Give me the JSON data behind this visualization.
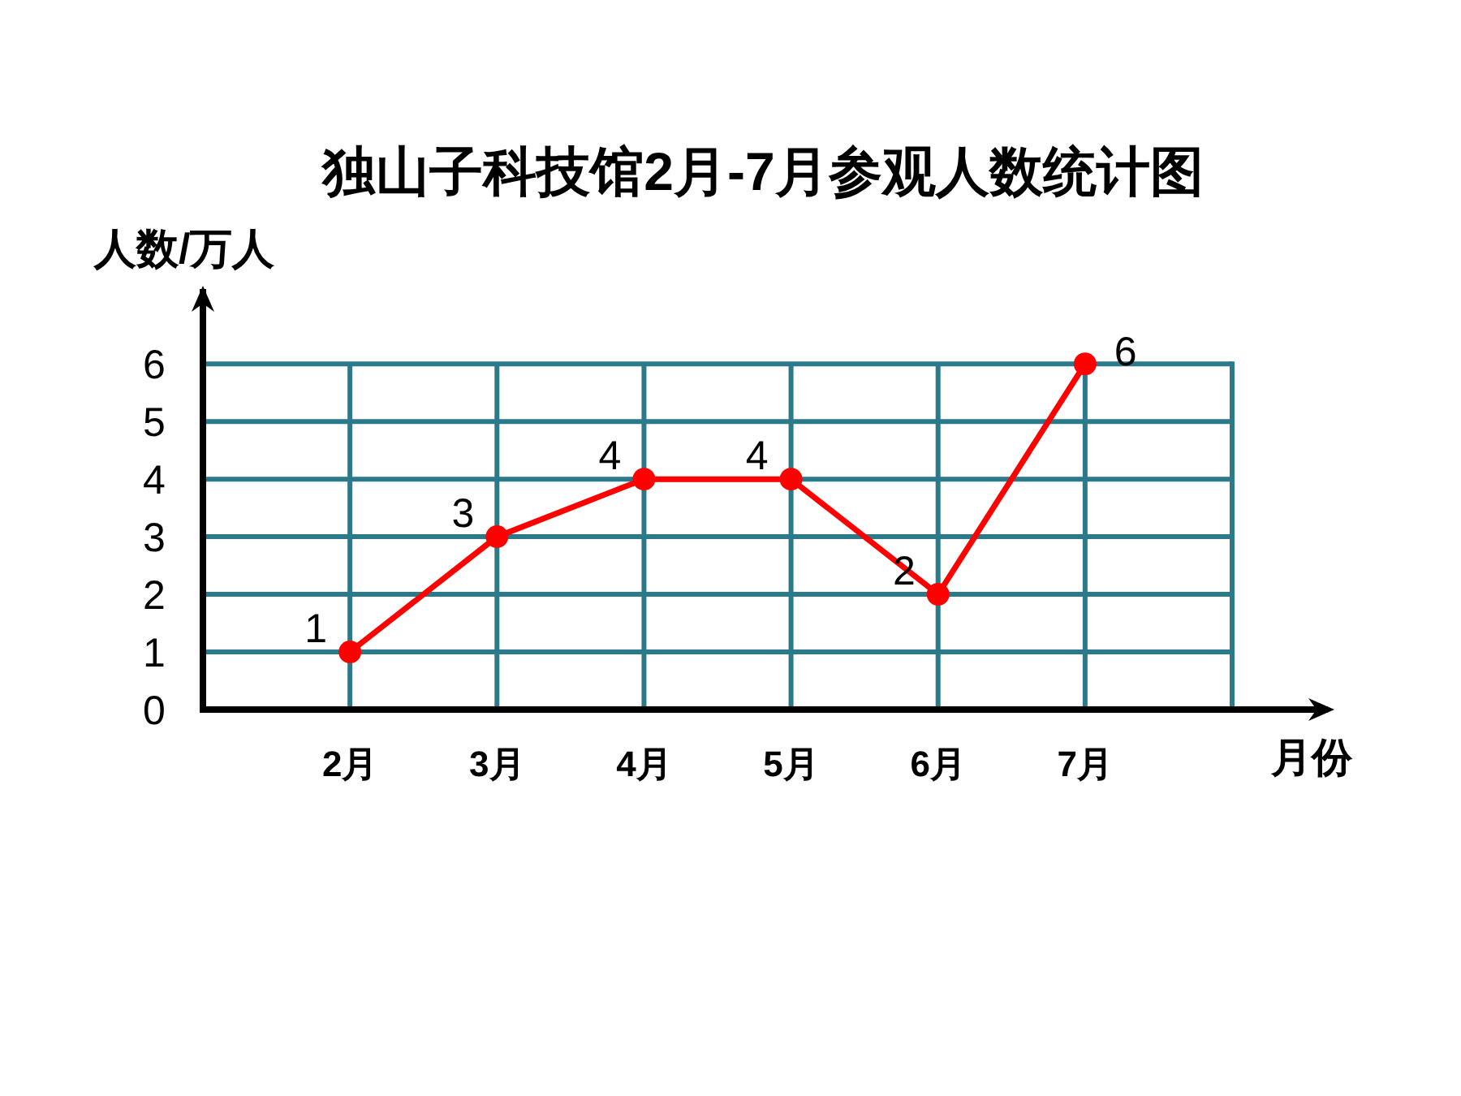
{
  "chart_data": {
    "type": "line",
    "title": "独山子科技馆2月-7月参观人数统计图",
    "xlabel": "月份",
    "ylabel": "人数/万人",
    "categories": [
      "2月",
      "3月",
      "4月",
      "5月",
      "6月",
      "7月"
    ],
    "series": [
      {
        "color": "#ff0000",
        "values": [
          1,
          3,
          4,
          4,
          2,
          6
        ]
      }
    ],
    "ylim": [
      0,
      7.3
    ],
    "yticks": [
      0,
      1,
      2,
      3,
      4,
      5,
      6
    ],
    "grid": true,
    "marker": "circle",
    "data_labels": true
  }
}
